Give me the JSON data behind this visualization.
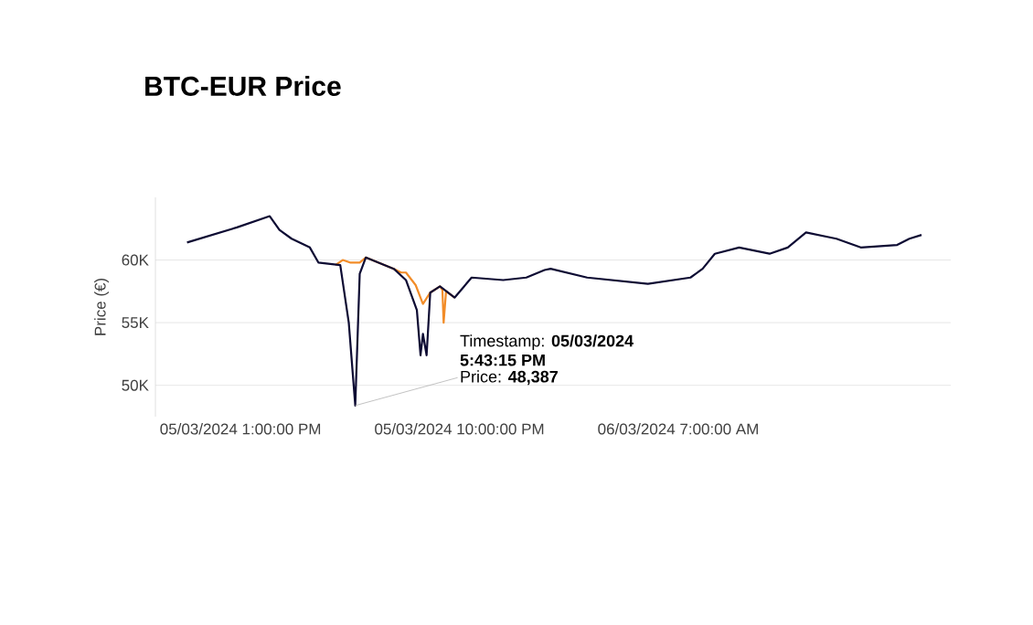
{
  "chart_data": {
    "type": "line",
    "title": "BTC-EUR Price",
    "ylabel": "Price (€)",
    "xlim": [
      "2024-03-05T09:30",
      "2024-03-06T18:12"
    ],
    "ylim": [
      47500,
      65000
    ],
    "xticks": [
      {
        "value": "2024-03-05T13:00",
        "label": "05/03/2024 1:00:00 PM"
      },
      {
        "value": "2024-03-05T22:00",
        "label": "05/03/2024 10:00:00 PM"
      },
      {
        "value": "2024-03-06T07:00",
        "label": "06/03/2024 7:00:00 AM"
      }
    ],
    "yticks": [
      {
        "value": 50000,
        "label": "50K"
      },
      {
        "value": 55000,
        "label": "55K"
      },
      {
        "value": 60000,
        "label": "60K"
      }
    ],
    "grid": "y",
    "marker": "none",
    "line_style": "solid",
    "series": [
      {
        "color": "#f28c28",
        "x": [
          "2024-03-05T16:54",
          "2024-03-05T17:12",
          "2024-03-05T17:30",
          "2024-03-05T17:54",
          "2024-03-05T18:09",
          "2024-03-05T19:18",
          "2024-03-05T19:36",
          "2024-03-05T19:48",
          "2024-03-05T20:12",
          "2024-03-05T20:30",
          "2024-03-05T20:48",
          "2024-03-05T21:12",
          "2024-03-05T21:18",
          "2024-03-05T21:21",
          "2024-03-05T21:27",
          "2024-03-05T21:48"
        ],
        "values": [
          59600,
          60000,
          59800,
          59800,
          60200,
          59300,
          59000,
          59000,
          58000,
          56500,
          57400,
          57900,
          57600,
          55000,
          57500,
          57000
        ]
      },
      {
        "color": "#0d0b33",
        "x": [
          "2024-03-05T10:48",
          "2024-03-05T12:51",
          "2024-03-05T14:12",
          "2024-03-05T14:36",
          "2024-03-05T15:06",
          "2024-03-05T15:51",
          "2024-03-05T16:12",
          "2024-03-05T17:06",
          "2024-03-05T17:27",
          "2024-03-05T17:43",
          "2024-03-05T17:54",
          "2024-03-05T18:09",
          "2024-03-05T19:18",
          "2024-03-05T19:48",
          "2024-03-05T20:15",
          "2024-03-05T20:24",
          "2024-03-05T20:30",
          "2024-03-05T20:39",
          "2024-03-05T20:48",
          "2024-03-05T21:12",
          "2024-03-05T21:48",
          "2024-03-05T22:30",
          "2024-03-05T23:48",
          "2024-03-06T00:45",
          "2024-03-06T01:30",
          "2024-03-06T01:45",
          "2024-03-06T03:15",
          "2024-03-06T05:45",
          "2024-03-06T07:30",
          "2024-03-06T08:00",
          "2024-03-06T08:30",
          "2024-03-06T09:30",
          "2024-03-06T10:45",
          "2024-03-06T11:30",
          "2024-03-06T12:15",
          "2024-03-06T13:30",
          "2024-03-06T14:30",
          "2024-03-06T16:00",
          "2024-03-06T16:30",
          "2024-03-06T17:00"
        ],
        "values": [
          61400,
          62600,
          63500,
          62400,
          61700,
          61000,
          59800,
          59600,
          55000,
          48387,
          58900,
          60200,
          59300,
          58400,
          56000,
          52400,
          54100,
          52400,
          57400,
          57900,
          57000,
          58600,
          58400,
          58600,
          59200,
          59300,
          58600,
          58100,
          58600,
          59300,
          60500,
          61000,
          60500,
          61000,
          62200,
          61700,
          61000,
          61200,
          61700,
          62000
        ]
      }
    ],
    "annotations": [
      "Timestamp: **05/03/2024**",
      "5:43:15 PM",
      {
        "text": "Price: **48,387**",
        "x": "2024-03-05T17:43",
        "y": 48387
      }
    ]
  }
}
